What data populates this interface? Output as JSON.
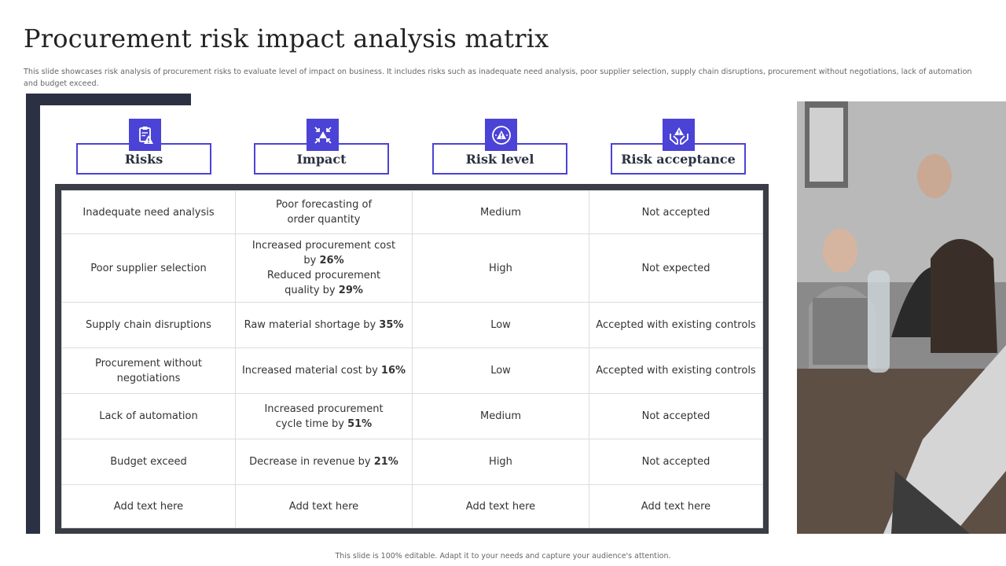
{
  "title": "Procurement risk impact analysis matrix",
  "subtitle": "This slide showcases risk analysis of procurement risks to evaluate level of impact on business. It includes risks such as inadequate need analysis, poor supplier selection, supply chain disruptions, procurement without negotiations, lack of automation and budget exceed.",
  "headers": [
    {
      "label": "Risks",
      "icon": "clipboard-warning-icon"
    },
    {
      "label": "Impact",
      "icon": "impact-arrows-icon"
    },
    {
      "label": "Risk level",
      "icon": "gauge-warning-icon"
    },
    {
      "label": "Risk acceptance",
      "icon": "hands-warning-icon"
    }
  ],
  "rows": [
    {
      "risk": "Inadequate need analysis",
      "impact_text": "Poor forecasting of order quantity",
      "impact_value": "",
      "level": "Medium",
      "acceptance": "Not accepted"
    },
    {
      "risk": "Poor supplier selection",
      "impact_text": "Increased procurement cost by",
      "impact_value": "26%",
      "impact_text2": "Reduced procurement quality by",
      "impact_value2": "29%",
      "level": "High",
      "acceptance": "Not expected"
    },
    {
      "risk": "Supply chain disruptions",
      "impact_text": "Raw material shortage by",
      "impact_value": "35%",
      "level": "Low",
      "acceptance": "Accepted with existing controls"
    },
    {
      "risk": "Procurement without negotiations",
      "impact_text": "Increased material cost by",
      "impact_value": "16%",
      "level": "Low",
      "acceptance": "Accepted with existing controls"
    },
    {
      "risk": "Lack of automation",
      "impact_text": "Increased procurement cycle time by",
      "impact_value": "51%",
      "level": "Medium",
      "acceptance": "Not accepted"
    },
    {
      "risk": "Budget exceed",
      "impact_text": "Decrease in revenue by",
      "impact_value": "21%",
      "level": "High",
      "acceptance": "Not accepted"
    },
    {
      "risk": "Add text here",
      "impact_text": "Add text here",
      "impact_value": "",
      "level": "Add text here",
      "acceptance": "Add text here"
    }
  ],
  "photo": {
    "icon": "office-meeting-photo"
  },
  "footer": "This slide is 100% editable. Adapt it to your needs and capture your audience's attention.",
  "colors": {
    "accent": "#4b43d6",
    "frame": "#2b3142",
    "table_border": "#3a3d46"
  }
}
